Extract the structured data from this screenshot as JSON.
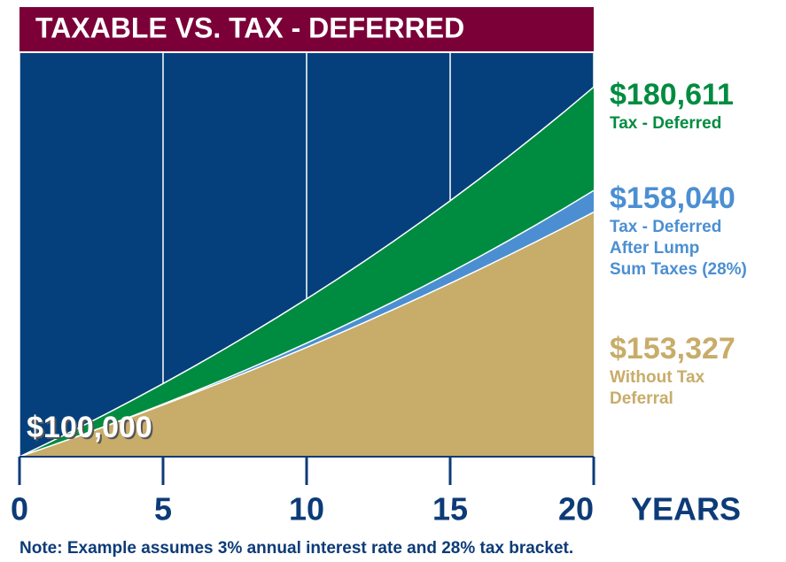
{
  "chart_data": {
    "type": "area",
    "title": "TAXABLE VS. TAX - DEFERRED",
    "x_label": "YEARS",
    "note": "Note: Example assumes 3% annual interest rate and 28% tax bracket.",
    "x": [
      0,
      1,
      2,
      3,
      4,
      5,
      6,
      7,
      8,
      9,
      10,
      11,
      12,
      13,
      14,
      15,
      16,
      17,
      18,
      19,
      20
    ],
    "xlim": [
      0,
      20
    ],
    "xticks": [
      0,
      5,
      10,
      15,
      20
    ],
    "ylim": [
      100000,
      188000
    ],
    "grid": true,
    "background": "#05407c",
    "series": [
      {
        "name": "Tax - Deferred",
        "color": "#008c40",
        "values": [
          100000,
          103000,
          106090,
          109273,
          112551,
          115927,
          119405,
          122987,
          126677,
          130477,
          134392,
          138423,
          142576,
          146853,
          151259,
          155797,
          160471,
          165285,
          170243,
          175351,
          180611
        ],
        "value_labels": [
          "$100,000",
          null,
          null,
          null,
          null,
          null,
          null,
          null,
          null,
          null,
          null,
          null,
          null,
          null,
          null,
          null,
          null,
          null,
          null,
          null,
          "$180,611"
        ]
      },
      {
        "name": "Tax - Deferred\nAfter Lump\nSum Taxes (28%)",
        "color": "#4b8fd2",
        "values": [
          100000,
          102160,
          104385,
          106677,
          109037,
          111467,
          113972,
          116551,
          119207,
          121943,
          124762,
          127665,
          130655,
          133734,
          136906,
          140174,
          143539,
          147005,
          150575,
          154253,
          158040
        ],
        "value_labels": [
          null,
          null,
          null,
          null,
          null,
          null,
          null,
          null,
          null,
          null,
          null,
          null,
          null,
          null,
          null,
          null,
          null,
          null,
          null,
          null,
          "$158,040"
        ]
      },
      {
        "name": "Without Tax\nDeferral",
        "color": "#c8ac69",
        "values": [
          100000,
          102160,
          104367,
          106621,
          108924,
          111277,
          113680,
          116136,
          118644,
          121207,
          123825,
          126500,
          129232,
          132024,
          134875,
          137789,
          140765,
          143805,
          146912,
          150085,
          153327
        ],
        "value_labels": [
          null,
          null,
          null,
          null,
          null,
          null,
          null,
          null,
          null,
          null,
          null,
          null,
          null,
          null,
          null,
          null,
          null,
          null,
          null,
          null,
          "$153,327"
        ]
      }
    ]
  }
}
